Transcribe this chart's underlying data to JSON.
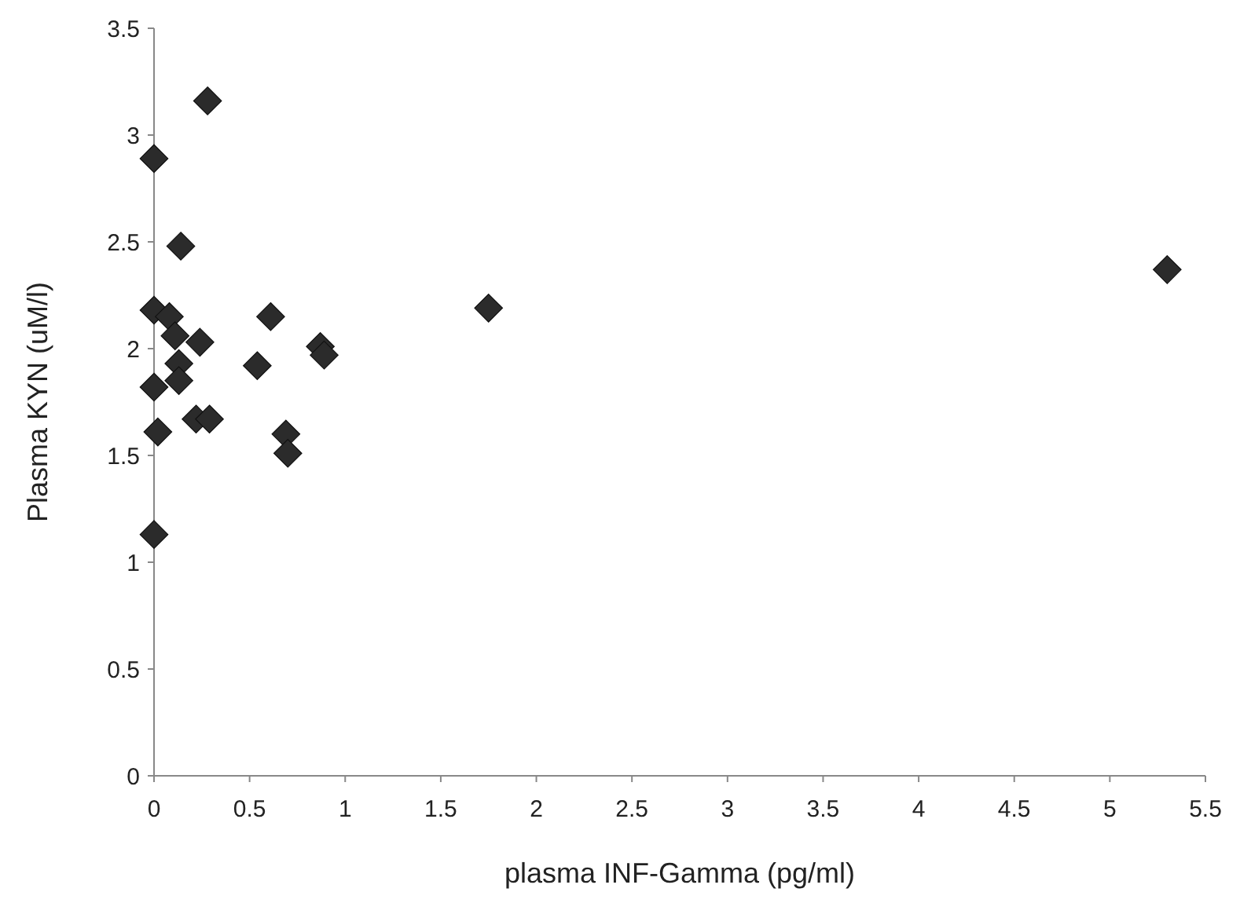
{
  "chart_data": {
    "type": "scatter",
    "xlabel": "plasma INF-Gamma (pg/ml)",
    "ylabel": "Plasma KYN (uM/l)",
    "xlim": [
      0,
      5.5
    ],
    "ylim": [
      0,
      3.5
    ],
    "xticks": [
      0,
      0.5,
      1,
      1.5,
      2,
      2.5,
      3,
      3.5,
      4,
      4.5,
      5,
      5.5
    ],
    "yticks": [
      0,
      0.5,
      1,
      1.5,
      2,
      2.5,
      3,
      3.5
    ],
    "grid": false,
    "marker": "diamond",
    "series": [
      {
        "color": "#2b2b2b",
        "x": [
          0.28,
          0,
          0.14,
          0,
          0.08,
          0.11,
          0.24,
          0.61,
          1.75,
          0.87,
          0.89,
          0.54,
          0.13,
          0.13,
          0,
          0.22,
          0.29,
          0.02,
          0.69,
          0.7,
          0,
          5.3
        ],
        "values": [
          3.16,
          2.89,
          2.48,
          2.18,
          2.15,
          2.06,
          2.03,
          2.15,
          2.19,
          2.01,
          1.97,
          1.92,
          1.93,
          1.85,
          1.82,
          1.67,
          1.67,
          1.61,
          1.6,
          1.51,
          1.13,
          2.37
        ]
      }
    ]
  }
}
